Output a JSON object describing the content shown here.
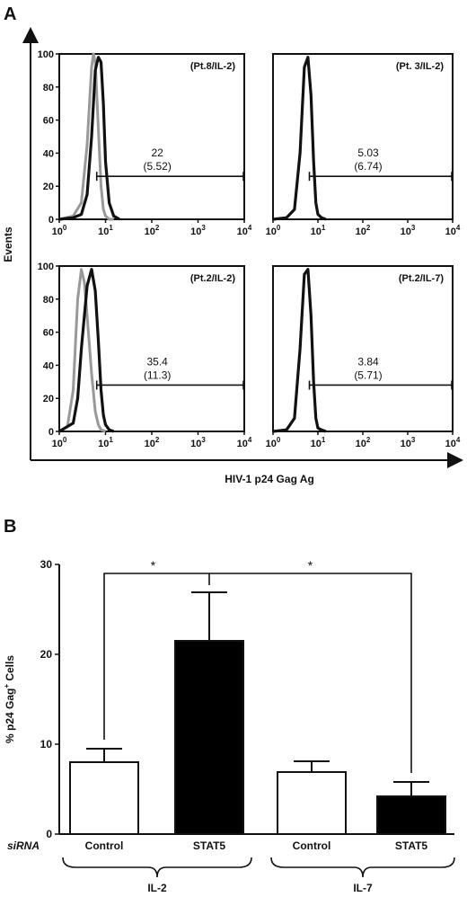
{
  "panel_a": {
    "label": "A",
    "y_label": "Events",
    "x_label": "HIV-1 p24 Gag Ag",
    "x_ticks": [
      "10",
      "10",
      "10",
      "10",
      "10"
    ],
    "x_tick_exps": [
      "0",
      "1",
      "2",
      "3",
      "4"
    ],
    "y_ticks": [
      "0",
      "20",
      "40",
      "60",
      "80",
      "100"
    ]
  },
  "panel_b": {
    "label": "B",
    "y_label_pre": "%  p24 Gag",
    "y_label_sup": "+",
    "y_label_post": " Cells",
    "y_ticks": [
      "0",
      "10",
      "20",
      "30"
    ],
    "sirna_label": "siRNA",
    "group_labels": [
      "IL-2",
      "IL-7"
    ],
    "significance": [
      "*",
      "*"
    ]
  },
  "chart_data": [
    {
      "type": "line",
      "title": "(Pt.8/IL-2)",
      "xlabel": "HIV-1 p24 Gag Ag",
      "ylabel": "Events",
      "x_scale": "log",
      "xlim": [
        1,
        10000
      ],
      "ylim": [
        0,
        100
      ],
      "annotation": [
        "22",
        "(5.52)"
      ],
      "series": [
        {
          "color": "#999999",
          "x": [
            1,
            2,
            3,
            4,
            5,
            5.5,
            6,
            7,
            8,
            9,
            10,
            12,
            15
          ],
          "y": [
            0,
            2,
            10,
            45,
            92,
            100,
            95,
            55,
            20,
            6,
            2,
            0,
            0
          ]
        },
        {
          "color": "#111111",
          "x": [
            1,
            2,
            3,
            4,
            5,
            6,
            7,
            8,
            9,
            10,
            12,
            15,
            20
          ],
          "y": [
            0,
            1,
            3,
            15,
            50,
            90,
            98,
            95,
            70,
            35,
            10,
            2,
            0
          ]
        }
      ]
    },
    {
      "type": "line",
      "title": "(Pt. 3/IL-2)",
      "xlabel": "HIV-1 p24 Gag Ag",
      "ylabel": "Events",
      "x_scale": "log",
      "xlim": [
        1,
        10000
      ],
      "ylim": [
        0,
        100
      ],
      "annotation": [
        "5.03",
        "(6.74)"
      ],
      "series": [
        {
          "color": "#111111",
          "x": [
            1,
            2,
            3,
            4,
            5,
            6,
            7,
            8,
            9,
            10,
            12,
            15
          ],
          "y": [
            0,
            1,
            6,
            40,
            92,
            98,
            75,
            35,
            10,
            3,
            1,
            0
          ]
        }
      ]
    },
    {
      "type": "line",
      "title": "(Pt.2/IL-2)",
      "xlabel": "HIV-1 p24 Gag Ag",
      "ylabel": "Events",
      "x_scale": "log",
      "xlim": [
        1,
        10000
      ],
      "ylim": [
        0,
        100
      ],
      "annotation": [
        "35.4",
        "(11.3)"
      ],
      "series": [
        {
          "color": "#999999",
          "x": [
            1,
            1.5,
            2,
            2.5,
            3,
            3.5,
            4,
            5,
            6,
            7,
            8,
            10
          ],
          "y": [
            0,
            3,
            25,
            80,
            98,
            90,
            70,
            35,
            12,
            4,
            1,
            0
          ]
        },
        {
          "color": "#111111",
          "x": [
            1,
            2,
            2.5,
            3,
            4,
            5,
            6,
            7,
            8,
            9,
            10,
            12,
            15
          ],
          "y": [
            0,
            5,
            20,
            50,
            88,
            98,
            85,
            55,
            25,
            10,
            4,
            1,
            0
          ]
        }
      ]
    },
    {
      "type": "line",
      "title": "(Pt.2/IL-7)",
      "xlabel": "HIV-1 p24 Gag Ag",
      "ylabel": "Events",
      "x_scale": "log",
      "xlim": [
        1,
        10000
      ],
      "ylim": [
        0,
        100
      ],
      "annotation": [
        "3.84",
        "(5.71)"
      ],
      "series": [
        {
          "color": "#111111",
          "x": [
            1,
            2,
            3,
            4,
            5,
            6,
            7,
            8,
            9,
            10,
            12,
            15
          ],
          "y": [
            0,
            1,
            8,
            50,
            95,
            98,
            70,
            30,
            8,
            2,
            1,
            0
          ]
        }
      ]
    },
    {
      "type": "bar",
      "xlabel": "",
      "ylabel": "% p24 Gag+ Cells",
      "ylim": [
        0,
        30
      ],
      "categories": [
        "Control",
        "STAT5",
        "Control",
        "STAT5"
      ],
      "groups": [
        "IL-2",
        "IL-2",
        "IL-7",
        "IL-7"
      ],
      "values": [
        8.0,
        21.5,
        6.9,
        4.2
      ],
      "errors": [
        1.5,
        5.4,
        1.2,
        1.6
      ],
      "colors": [
        "#ffffff",
        "#000000",
        "#ffffff",
        "#000000"
      ]
    }
  ]
}
